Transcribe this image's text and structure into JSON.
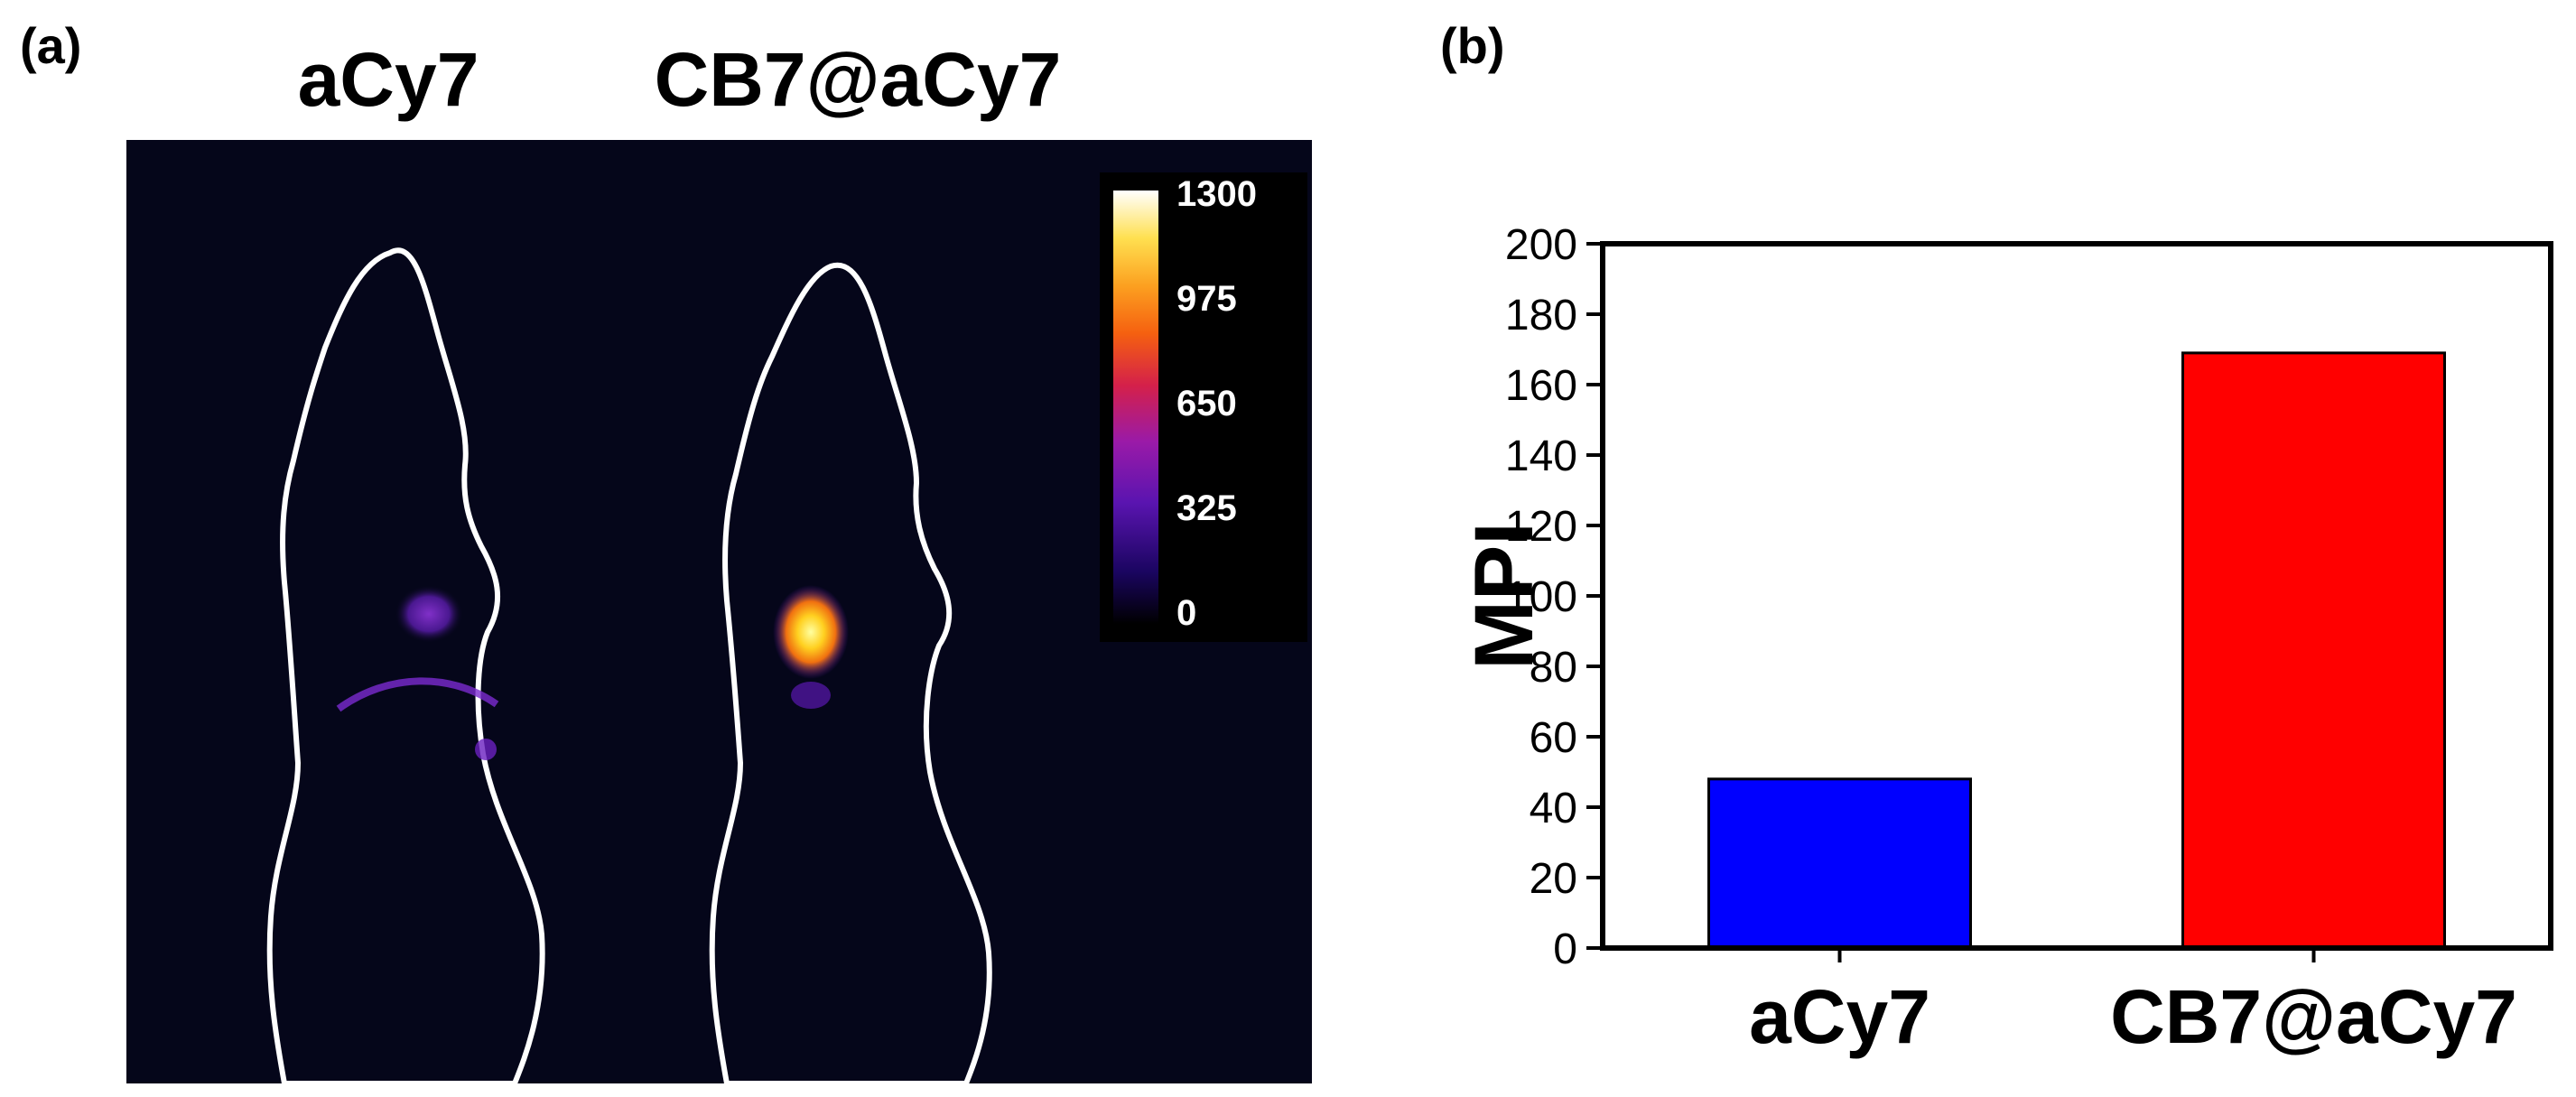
{
  "panel_a": {
    "label": "(a)",
    "titles": [
      "aCy7",
      "CB7@aCy7"
    ],
    "colorbar": {
      "ticks": [
        "1300",
        "975",
        "650",
        "325",
        "0"
      ],
      "min": 0,
      "max": 1300
    }
  },
  "panel_b": {
    "label": "(b)"
  },
  "chart_data": {
    "type": "bar",
    "categories": [
      "aCy7",
      "CB7@aCy7"
    ],
    "values": [
      48,
      169
    ],
    "colors": [
      "#0000ff",
      "#ff0000"
    ],
    "title": "",
    "xlabel": "",
    "ylabel": "MPI",
    "ylim": [
      0,
      200
    ],
    "yticks": [
      0,
      20,
      40,
      60,
      80,
      100,
      120,
      140,
      160,
      180,
      200
    ],
    "grid": false
  }
}
